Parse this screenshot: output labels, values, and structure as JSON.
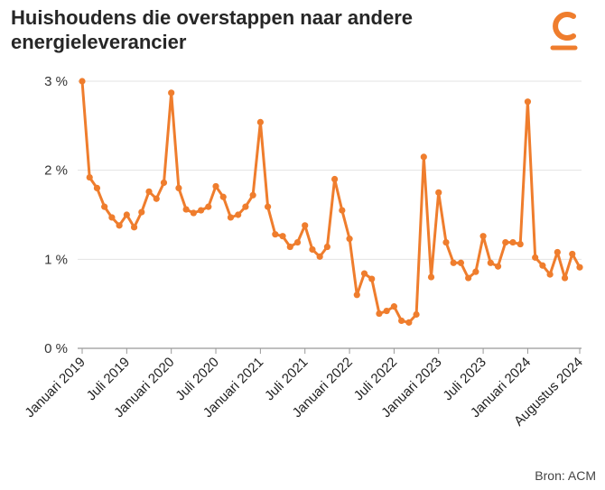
{
  "title": "Huishoudens die overstappen naar andere energieleverancier",
  "source": "Bron: ACM",
  "brand_color": "#ef7d2d",
  "logo_icon": "c-logo-icon",
  "chart_data": {
    "type": "line",
    "title": "Huishoudens die overstappen naar andere energieleverancier",
    "xlabel": "",
    "ylabel": "",
    "ylim": [
      0,
      3
    ],
    "grid": true,
    "color": "#ef7d2d",
    "yticks": [
      {
        "value": 0,
        "label": "0 %"
      },
      {
        "value": 1,
        "label": "1 %"
      },
      {
        "value": 2,
        "label": "2 %"
      },
      {
        "value": 3,
        "label": "3 %"
      }
    ],
    "xticks": [
      {
        "index": 0,
        "label": "Januari 2019"
      },
      {
        "index": 6,
        "label": "Juli 2019"
      },
      {
        "index": 12,
        "label": "Januari 2020"
      },
      {
        "index": 18,
        "label": "Juli 2020"
      },
      {
        "index": 24,
        "label": "Januari 2021"
      },
      {
        "index": 30,
        "label": "Juli 2021"
      },
      {
        "index": 36,
        "label": "Januari 2022"
      },
      {
        "index": 42,
        "label": "Juli 2022"
      },
      {
        "index": 48,
        "label": "Januari 2023"
      },
      {
        "index": 54,
        "label": "Juli 2023"
      },
      {
        "index": 60,
        "label": "Januari 2024"
      },
      {
        "index": 67,
        "label": "Augustus 2024"
      }
    ],
    "x": [
      "2019-01",
      "2019-02",
      "2019-03",
      "2019-04",
      "2019-05",
      "2019-06",
      "2019-07",
      "2019-08",
      "2019-09",
      "2019-10",
      "2019-11",
      "2019-12",
      "2020-01",
      "2020-02",
      "2020-03",
      "2020-04",
      "2020-05",
      "2020-06",
      "2020-07",
      "2020-08",
      "2020-09",
      "2020-10",
      "2020-11",
      "2020-12",
      "2021-01",
      "2021-02",
      "2021-03",
      "2021-04",
      "2021-05",
      "2021-06",
      "2021-07",
      "2021-08",
      "2021-09",
      "2021-10",
      "2021-11",
      "2021-12",
      "2022-01",
      "2022-02",
      "2022-03",
      "2022-04",
      "2022-05",
      "2022-06",
      "2022-07",
      "2022-08",
      "2022-09",
      "2022-10",
      "2022-11",
      "2022-12",
      "2023-01",
      "2023-02",
      "2023-03",
      "2023-04",
      "2023-05",
      "2023-06",
      "2023-07",
      "2023-08",
      "2023-09",
      "2023-10",
      "2023-11",
      "2023-12",
      "2024-01",
      "2024-02",
      "2024-03",
      "2024-04",
      "2024-05",
      "2024-06",
      "2024-07",
      "2024-08"
    ],
    "series": [
      {
        "values": [
          3.0,
          1.92,
          1.8,
          1.59,
          1.47,
          1.38,
          1.5,
          1.36,
          1.53,
          1.76,
          1.68,
          1.86,
          2.87,
          1.8,
          1.56,
          1.52,
          1.55,
          1.59,
          1.82,
          1.7,
          1.47,
          1.5,
          1.59,
          1.72,
          2.54,
          1.59,
          1.28,
          1.26,
          1.14,
          1.19,
          1.38,
          1.11,
          1.03,
          1.14,
          1.9,
          1.55,
          1.23,
          0.6,
          0.84,
          0.78,
          0.39,
          0.42,
          0.47,
          0.31,
          0.29,
          0.38,
          2.15,
          0.8,
          1.75,
          1.19,
          0.96,
          0.96,
          0.79,
          0.86,
          1.26,
          0.96,
          0.92,
          1.19,
          1.19,
          1.17,
          2.77,
          1.02,
          0.93,
          0.83,
          1.08,
          0.79,
          1.06,
          0.91
        ]
      }
    ]
  }
}
